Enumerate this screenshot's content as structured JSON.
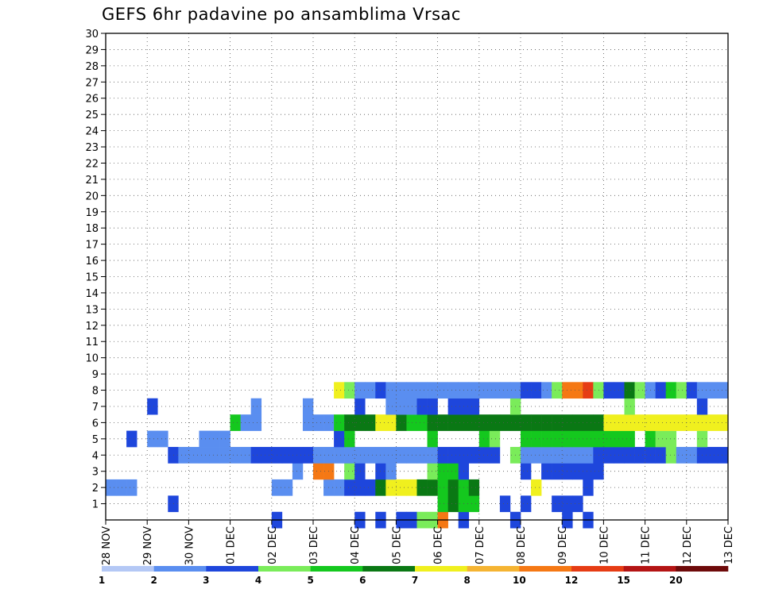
{
  "chart_data": {
    "type": "heatmap",
    "title": "GEFS 6hr padavine po ansamblima Vrsac",
    "xlabel": "",
    "ylabel": "",
    "x_ticks": [
      "28 NOV",
      "29 NOV",
      "30 NOV",
      "01 DEC",
      "02 DEC",
      "03 DEC",
      "04 DEC",
      "05 DEC",
      "06 DEC",
      "07 DEC",
      "08 DEC",
      "09 DEC",
      "10 DEC",
      "11 DEC",
      "12 DEC",
      "13 DEC"
    ],
    "y_ticks": [
      1,
      2,
      3,
      4,
      5,
      6,
      7,
      8,
      9,
      10,
      11,
      12,
      13,
      14,
      15,
      16,
      17,
      18,
      19,
      20,
      21,
      22,
      23,
      24,
      25,
      26,
      27,
      28,
      29,
      30
    ],
    "x_range_steps": [
      0,
      60
    ],
    "y_range_members": [
      0,
      30
    ],
    "steps_per_day": 4,
    "grid": "dotted",
    "colorbar": {
      "labels": [
        "1",
        "2",
        "3",
        "4",
        "5",
        "6",
        "7",
        "8",
        "10",
        "12",
        "15",
        "20"
      ],
      "colors": [
        "#b4c8f5",
        "#5a8ef0",
        "#1e46dc",
        "#7aec5a",
        "#14c81e",
        "#0a7814",
        "#f0f01e",
        "#f5b432",
        "#f57814",
        "#e63c14",
        "#b41414",
        "#6e0a0a"
      ]
    },
    "cells": [
      [
        0,
        16,
        2
      ],
      [
        0,
        24,
        2
      ],
      [
        0,
        26,
        2
      ],
      [
        0,
        28,
        2
      ],
      [
        0,
        29,
        2
      ],
      [
        0,
        30,
        3
      ],
      [
        0,
        31,
        3
      ],
      [
        0,
        32,
        8
      ],
      [
        0,
        34,
        2
      ],
      [
        0,
        39,
        2
      ],
      [
        0,
        44,
        2
      ],
      [
        0,
        46,
        2
      ],
      [
        1,
        6,
        2
      ],
      [
        1,
        32,
        4
      ],
      [
        1,
        33,
        5
      ],
      [
        1,
        34,
        4
      ],
      [
        1,
        35,
        4
      ],
      [
        1,
        38,
        2
      ],
      [
        1,
        40,
        2
      ],
      [
        1,
        43,
        2
      ],
      [
        1,
        44,
        2
      ],
      [
        1,
        45,
        2
      ],
      [
        2,
        0,
        1
      ],
      [
        2,
        1,
        1
      ],
      [
        2,
        2,
        1
      ],
      [
        2,
        16,
        1
      ],
      [
        2,
        17,
        1
      ],
      [
        2,
        21,
        1
      ],
      [
        2,
        22,
        1
      ],
      [
        2,
        23,
        2
      ],
      [
        2,
        24,
        2
      ],
      [
        2,
        25,
        2
      ],
      [
        2,
        26,
        5
      ],
      [
        2,
        27,
        6
      ],
      [
        2,
        28,
        6
      ],
      [
        2,
        29,
        6
      ],
      [
        2,
        30,
        5
      ],
      [
        2,
        31,
        5
      ],
      [
        2,
        32,
        4
      ],
      [
        2,
        33,
        5
      ],
      [
        2,
        34,
        4
      ],
      [
        2,
        35,
        5
      ],
      [
        2,
        41,
        6
      ],
      [
        2,
        46,
        2
      ],
      [
        3,
        18,
        1
      ],
      [
        3,
        20,
        8
      ],
      [
        3,
        21,
        8
      ],
      [
        3,
        23,
        3
      ],
      [
        3,
        24,
        2
      ],
      [
        3,
        26,
        2
      ],
      [
        3,
        27,
        1
      ],
      [
        3,
        31,
        3
      ],
      [
        3,
        32,
        4
      ],
      [
        3,
        33,
        4
      ],
      [
        3,
        34,
        2
      ],
      [
        3,
        40,
        2
      ],
      [
        3,
        42,
        2
      ],
      [
        3,
        43,
        2
      ],
      [
        3,
        44,
        2
      ],
      [
        3,
        45,
        2
      ],
      [
        3,
        46,
        2
      ],
      [
        3,
        47,
        2
      ],
      [
        4,
        6,
        2
      ],
      [
        4,
        7,
        1
      ],
      [
        4,
        8,
        1
      ],
      [
        4,
        9,
        1
      ],
      [
        4,
        10,
        1
      ],
      [
        4,
        11,
        1
      ],
      [
        4,
        12,
        1
      ],
      [
        4,
        13,
        1
      ],
      [
        4,
        14,
        2
      ],
      [
        4,
        15,
        2
      ],
      [
        4,
        16,
        2
      ],
      [
        4,
        17,
        2
      ],
      [
        4,
        18,
        2
      ],
      [
        4,
        19,
        2
      ],
      [
        4,
        20,
        1
      ],
      [
        4,
        21,
        1
      ],
      [
        4,
        22,
        1
      ],
      [
        4,
        23,
        1
      ],
      [
        4,
        24,
        1
      ],
      [
        4,
        25,
        1
      ],
      [
        4,
        26,
        1
      ],
      [
        4,
        27,
        1
      ],
      [
        4,
        28,
        1
      ],
      [
        4,
        29,
        1
      ],
      [
        4,
        30,
        1
      ],
      [
        4,
        31,
        1
      ],
      [
        4,
        32,
        2
      ],
      [
        4,
        33,
        2
      ],
      [
        4,
        34,
        2
      ],
      [
        4,
        35,
        2
      ],
      [
        4,
        36,
        2
      ],
      [
        4,
        37,
        2
      ],
      [
        4,
        39,
        3
      ],
      [
        4,
        40,
        1
      ],
      [
        4,
        41,
        1
      ],
      [
        4,
        42,
        1
      ],
      [
        4,
        43,
        1
      ],
      [
        4,
        44,
        1
      ],
      [
        4,
        45,
        1
      ],
      [
        4,
        46,
        1
      ],
      [
        4,
        47,
        2
      ],
      [
        4,
        48,
        2
      ],
      [
        4,
        49,
        2
      ],
      [
        4,
        50,
        2
      ],
      [
        4,
        51,
        2
      ],
      [
        4,
        52,
        2
      ],
      [
        4,
        53,
        2
      ],
      [
        4,
        54,
        3
      ],
      [
        4,
        55,
        1
      ],
      [
        4,
        56,
        1
      ],
      [
        4,
        57,
        2
      ],
      [
        4,
        58,
        2
      ],
      [
        4,
        59,
        2
      ],
      [
        5,
        2,
        2
      ],
      [
        5,
        4,
        1
      ],
      [
        5,
        5,
        1
      ],
      [
        5,
        9,
        1
      ],
      [
        5,
        10,
        1
      ],
      [
        5,
        11,
        1
      ],
      [
        5,
        22,
        2
      ],
      [
        5,
        23,
        4
      ],
      [
        5,
        31,
        4
      ],
      [
        5,
        36,
        4
      ],
      [
        5,
        37,
        3
      ],
      [
        5,
        40,
        4
      ],
      [
        5,
        41,
        4
      ],
      [
        5,
        42,
        4
      ],
      [
        5,
        43,
        4
      ],
      [
        5,
        44,
        4
      ],
      [
        5,
        45,
        4
      ],
      [
        5,
        46,
        4
      ],
      [
        5,
        47,
        4
      ],
      [
        5,
        48,
        4
      ],
      [
        5,
        49,
        4
      ],
      [
        5,
        50,
        4
      ],
      [
        5,
        52,
        4
      ],
      [
        5,
        53,
        3
      ],
      [
        5,
        54,
        3
      ],
      [
        5,
        57,
        3
      ],
      [
        6,
        12,
        4
      ],
      [
        6,
        13,
        1
      ],
      [
        6,
        14,
        1
      ],
      [
        6,
        19,
        1
      ],
      [
        6,
        20,
        1
      ],
      [
        6,
        21,
        1
      ],
      [
        6,
        22,
        4
      ],
      [
        6,
        23,
        5
      ],
      [
        6,
        24,
        5
      ],
      [
        6,
        25,
        5
      ],
      [
        6,
        26,
        6
      ],
      [
        6,
        27,
        6
      ],
      [
        6,
        28,
        5
      ],
      [
        6,
        29,
        4
      ],
      [
        6,
        30,
        4
      ],
      [
        6,
        31,
        5
      ],
      [
        6,
        32,
        5
      ],
      [
        6,
        33,
        5
      ],
      [
        6,
        34,
        5
      ],
      [
        6,
        35,
        5
      ],
      [
        6,
        36,
        5
      ],
      [
        6,
        37,
        5
      ],
      [
        6,
        38,
        5
      ],
      [
        6,
        39,
        5
      ],
      [
        6,
        40,
        5
      ],
      [
        6,
        41,
        5
      ],
      [
        6,
        42,
        5
      ],
      [
        6,
        43,
        5
      ],
      [
        6,
        44,
        5
      ],
      [
        6,
        45,
        5
      ],
      [
        6,
        46,
        5
      ],
      [
        6,
        47,
        5
      ],
      [
        6,
        48,
        6
      ],
      [
        6,
        49,
        6
      ],
      [
        6,
        50,
        6
      ],
      [
        6,
        51,
        6
      ],
      [
        6,
        52,
        6
      ],
      [
        6,
        53,
        6
      ],
      [
        6,
        54,
        6
      ],
      [
        6,
        55,
        6
      ],
      [
        6,
        56,
        6
      ],
      [
        6,
        57,
        6
      ],
      [
        6,
        58,
        6
      ],
      [
        6,
        59,
        6
      ],
      [
        7,
        4,
        2
      ],
      [
        7,
        14,
        1
      ],
      [
        7,
        19,
        1
      ],
      [
        7,
        24,
        2
      ],
      [
        7,
        27,
        1
      ],
      [
        7,
        28,
        1
      ],
      [
        7,
        29,
        1
      ],
      [
        7,
        30,
        2
      ],
      [
        7,
        31,
        2
      ],
      [
        7,
        33,
        2
      ],
      [
        7,
        34,
        2
      ],
      [
        7,
        35,
        2
      ],
      [
        7,
        39,
        3
      ],
      [
        7,
        50,
        3
      ],
      [
        7,
        57,
        2
      ],
      [
        8,
        22,
        6
      ],
      [
        8,
        23,
        3
      ],
      [
        8,
        24,
        1
      ],
      [
        8,
        25,
        1
      ],
      [
        8,
        26,
        2
      ],
      [
        8,
        27,
        1
      ],
      [
        8,
        28,
        1
      ],
      [
        8,
        29,
        1
      ],
      [
        8,
        30,
        1
      ],
      [
        8,
        31,
        1
      ],
      [
        8,
        32,
        1
      ],
      [
        8,
        33,
        1
      ],
      [
        8,
        34,
        1
      ],
      [
        8,
        35,
        1
      ],
      [
        8,
        36,
        1
      ],
      [
        8,
        37,
        1
      ],
      [
        8,
        38,
        1
      ],
      [
        8,
        39,
        1
      ],
      [
        8,
        40,
        2
      ],
      [
        8,
        41,
        2
      ],
      [
        8,
        42,
        1
      ],
      [
        8,
        43,
        3
      ],
      [
        8,
        44,
        8
      ],
      [
        8,
        45,
        8
      ],
      [
        8,
        46,
        9
      ],
      [
        8,
        47,
        3
      ],
      [
        8,
        48,
        2
      ],
      [
        8,
        49,
        2
      ],
      [
        8,
        50,
        5
      ],
      [
        8,
        51,
        3
      ],
      [
        8,
        52,
        1
      ],
      [
        8,
        53,
        2
      ],
      [
        8,
        54,
        4
      ],
      [
        8,
        55,
        3
      ],
      [
        8,
        56,
        2
      ],
      [
        8,
        57,
        1
      ],
      [
        8,
        58,
        1
      ],
      [
        8,
        59,
        1
      ]
    ]
  }
}
